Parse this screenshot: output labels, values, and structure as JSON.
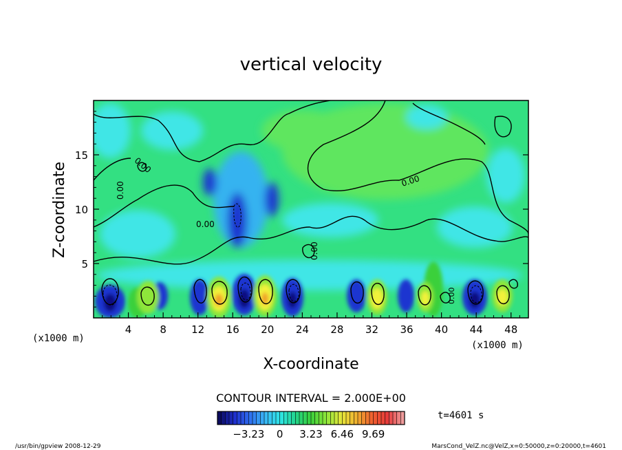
{
  "chart_data": {
    "type": "heatmap",
    "title": "vertical velocity",
    "xlabel": "X-coordinate",
    "ylabel": "Z-coordinate",
    "x_units": "(x1000 m)",
    "y_units": "(x1000 m)",
    "xlim": [
      0,
      50
    ],
    "ylim": [
      0,
      20
    ],
    "x_ticks": [
      4,
      8,
      12,
      16,
      20,
      24,
      28,
      32,
      36,
      40,
      44,
      48
    ],
    "x_tick_labels": [
      "4",
      "8",
      "12",
      "16",
      "20",
      "24",
      "28",
      "32",
      "36",
      "40",
      "44",
      "48"
    ],
    "y_ticks": [
      5,
      10,
      15
    ],
    "y_tick_labels": [
      "5",
      "10",
      "15"
    ],
    "contour_interval_text": "CONTOUR INTERVAL = 2.000E+00",
    "contour_labels": [
      "0.00",
      "0.00",
      "0.00",
      "0.00",
      "0.00",
      "0.00"
    ],
    "colorbar": {
      "min": -6.46,
      "max": 12.92,
      "tick_values": [
        -3.23,
        0,
        3.23,
        6.46,
        9.69
      ],
      "tick_labels": [
        "−3.23",
        "0",
        "3.23",
        "6.46",
        "9.69"
      ],
      "colors": [
        "#0b0b5e",
        "#1f2fcc",
        "#2f6ff0",
        "#39b7f5",
        "#2ee6e6",
        "#22d38a",
        "#3ad03a",
        "#8ee63a",
        "#e6e63a",
        "#f0b02f",
        "#f0602f",
        "#e63a3a",
        "#ee9a9a"
      ]
    },
    "time_label": "t=4601 s",
    "footer_left": "/usr/bin/gpview   2008-12-29",
    "footer_right": "MarsCond_VelZ.nc@VelZ,x=0:50000,z=0:20000,t=4601",
    "field_colors": {
      "background": "#33e082",
      "upper_green": "#5fe65f",
      "cyan": "#40e6e6",
      "light_blue": "#35b3f0",
      "blue": "#1a35d0",
      "dark_blue": "#0c0c80",
      "yellow": "#f2f23a",
      "orange": "#f0a02a",
      "red": "#e05a30"
    }
  }
}
